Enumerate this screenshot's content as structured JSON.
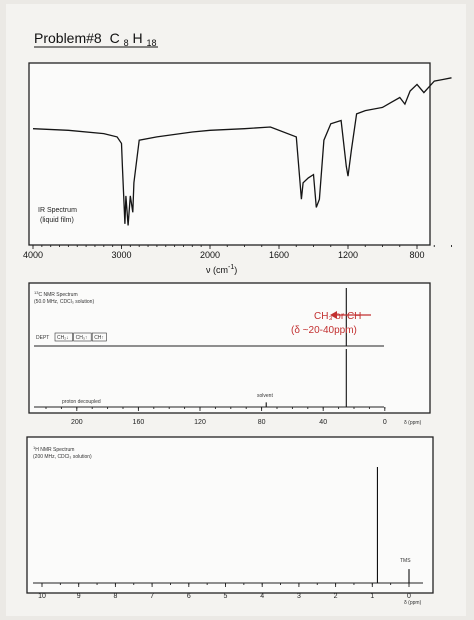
{
  "problem": {
    "label": "Problem#8",
    "formula_main": "C",
    "sub1": "8",
    "formula_h": "H",
    "sub2": "18"
  },
  "chart_data": [
    {
      "type": "line",
      "name_label": "IR Spectrum",
      "sample_label": "(liquid film)",
      "xlabel_main": "ν (cm",
      "xlabel_exp": "-1",
      "xlabel_close": ")",
      "xlim": [
        4000,
        600
      ],
      "x_ticks": [
        "4000",
        "3000",
        "2000",
        "1600",
        "1200",
        "800"
      ],
      "x_tick_values": [
        4000,
        3000,
        2000,
        1600,
        1200,
        800
      ],
      "y_unit": "% transmittance (0-100, unlabeled)",
      "points": [
        [
          4000,
          63
        ],
        [
          3600,
          62
        ],
        [
          3200,
          60
        ],
        [
          3050,
          58
        ],
        [
          3000,
          54
        ],
        [
          2990,
          40
        ],
        [
          2962,
          5
        ],
        [
          2950,
          22
        ],
        [
          2925,
          4
        ],
        [
          2900,
          22
        ],
        [
          2872,
          12
        ],
        [
          2860,
          30
        ],
        [
          2800,
          56
        ],
        [
          2600,
          58
        ],
        [
          2200,
          61
        ],
        [
          2000,
          62
        ],
        [
          1800,
          63
        ],
        [
          1650,
          64
        ],
        [
          1500,
          58
        ],
        [
          1470,
          20
        ],
        [
          1460,
          30
        ],
        [
          1430,
          33
        ],
        [
          1400,
          35
        ],
        [
          1384,
          15
        ],
        [
          1366,
          20
        ],
        [
          1340,
          56
        ],
        [
          1300,
          66
        ],
        [
          1240,
          68
        ],
        [
          1210,
          40
        ],
        [
          1200,
          34
        ],
        [
          1180,
          50
        ],
        [
          1150,
          72
        ],
        [
          1100,
          74
        ],
        [
          1000,
          76
        ],
        [
          950,
          79
        ],
        [
          900,
          82
        ],
        [
          870,
          78
        ],
        [
          840,
          86
        ],
        [
          800,
          90
        ],
        [
          760,
          85
        ],
        [
          700,
          92
        ],
        [
          650,
          93
        ],
        [
          600,
          94
        ]
      ]
    },
    {
      "type": "line",
      "name_label": "13C NMR Spectrum",
      "sup": "13",
      "name_rest": "C NMR Spectrum",
      "freq_label": "(50.0 MHz, CDCl₃ solution)",
      "dept_label": "DEPT",
      "dept_boxes": [
        "CH₂↓",
        "CH₃↑",
        "CH↑"
      ],
      "decoupled_label": "proton decoupled",
      "solvent_label": "solvent",
      "annotation_line1": "CH₃ or CH",
      "annotation_line2": "(δ ~20-40ppm)",
      "xlim": [
        220,
        0
      ],
      "x_ticks": [
        "200",
        "160",
        "120",
        "80",
        "40",
        "0"
      ],
      "x_tick_values": [
        200,
        160,
        120,
        80,
        40,
        0
      ],
      "x_unit": "δ (ppm)",
      "dept_peaks": [
        [
          25,
          1.0
        ]
      ],
      "decoupled_peaks": [
        [
          25,
          1.0
        ],
        [
          77,
          0.08
        ]
      ]
    },
    {
      "type": "line",
      "name_label": "1H NMR Spectrum",
      "sup": "1",
      "name_rest": "H NMR Spectrum",
      "freq_label": "(200 MHz, CDCl₃ solution)",
      "tms_label": "TMS",
      "xlim": [
        10.5,
        -0.5
      ],
      "x_ticks": [
        "10",
        "9",
        "8",
        "7",
        "6",
        "5",
        "4",
        "3",
        "2",
        "1",
        "0"
      ],
      "x_tick_values": [
        10,
        9,
        8,
        7,
        6,
        5,
        4,
        3,
        2,
        1,
        0
      ],
      "x_unit": "δ (ppm)",
      "peaks": [
        [
          0.86,
          1.0
        ],
        [
          0,
          0.12
        ]
      ]
    }
  ],
  "colors": {
    "ink": "#222222",
    "annotation": "#c23030"
  }
}
